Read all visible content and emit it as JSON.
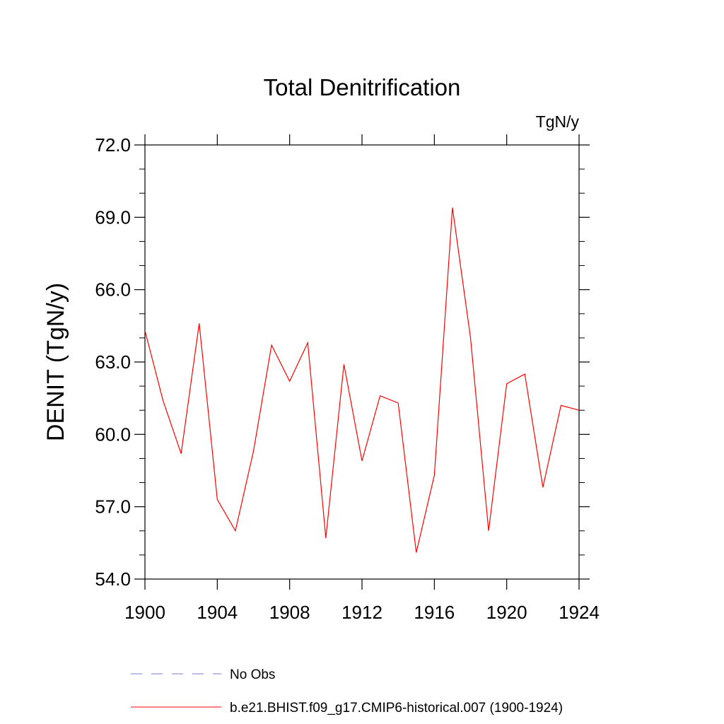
{
  "chart_data": {
    "type": "line",
    "title": "Total Denitrification",
    "units_label": "TgN/y",
    "ylabel": "DENIT  (TgN/y)",
    "xlabel": "",
    "xlim": [
      1900,
      1924
    ],
    "ylim": [
      54.0,
      72.0
    ],
    "x_ticks": [
      1900,
      1904,
      1908,
      1912,
      1916,
      1920,
      1924
    ],
    "x_tick_labels": [
      "1900",
      "1904",
      "1908",
      "1912",
      "1916",
      "1920",
      "1924"
    ],
    "y_ticks": [
      54.0,
      57.0,
      60.0,
      63.0,
      66.0,
      69.0,
      72.0
    ],
    "y_tick_labels": [
      "54.0",
      "57.0",
      "60.0",
      "63.0",
      "66.0",
      "69.0",
      "72.0"
    ],
    "grid": false,
    "legend_position": "bottom",
    "series": [
      {
        "name": "b.e21.BHIST.f09_g17.CMIP6-historical.007 (1900-1924)",
        "color": "#ff0000",
        "style": "solid",
        "x": [
          1900,
          1901,
          1902,
          1903,
          1904,
          1905,
          1906,
          1907,
          1908,
          1909,
          1910,
          1911,
          1912,
          1913,
          1914,
          1915,
          1916,
          1917,
          1918,
          1919,
          1920,
          1921,
          1922,
          1923,
          1924
        ],
        "values": [
          64.3,
          61.4,
          59.2,
          64.6,
          57.3,
          56.0,
          59.3,
          63.7,
          62.2,
          63.8,
          55.7,
          62.9,
          58.9,
          61.6,
          61.3,
          55.1,
          58.3,
          69.4,
          64.0,
          56.0,
          62.1,
          62.5,
          57.8,
          61.2,
          61.0
        ]
      }
    ],
    "legend": [
      {
        "label": "No Obs",
        "color": "#7b7bd6",
        "style": "dashed"
      },
      {
        "label": "b.e21.BHIST.f09_g17.CMIP6-historical.007 (1900-1924)",
        "color": "#ff0000",
        "style": "solid"
      }
    ]
  }
}
